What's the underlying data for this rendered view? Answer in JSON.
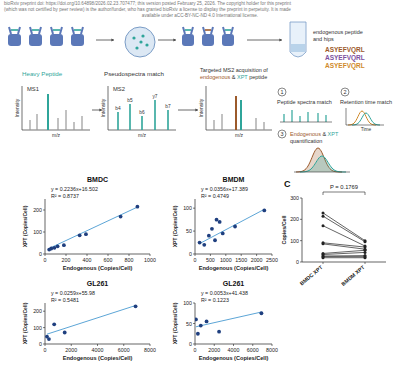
{
  "header": {
    "lines": [
      "bioRxiv preprint doi: https://doi.org/10.64898/2026.02.23.707477; this version posted February 25, 2026. The copyright holder for this preprint",
      "(which was not certified by peer review) is the author/funder, who has granted bioRxiv a license to display the preprint in perpetuity. It is made",
      "available under aCC-BY-NC-ND 4.0 International license."
    ]
  },
  "diagram": {
    "top_right": [
      "endogenous peptide",
      "and hips"
    ],
    "sequences": [
      "ASYEFVQRL",
      "ASYEFVQRL",
      "ASYEFVQRL"
    ],
    "heavy_peptide": "Heavy Peptide",
    "pseudospectra": "Pseudospectra match",
    "targeted": [
      "Targeted MS2 acquisition of",
      "endogenous",
      "&",
      "XPT",
      "peptide"
    ],
    "ms1": "MS1",
    "ms2": "MS2",
    "intensity": "Intensity",
    "mz": "m/z",
    "ions": [
      "b4",
      "b5",
      "b6",
      "y7",
      "b7"
    ],
    "steps": [
      {
        "number": "1",
        "label": [
          "Peptide spectra match"
        ]
      },
      {
        "number": "2",
        "label": [
          "Retention time match"
        ]
      },
      {
        "number": "3",
        "label": [
          "Endogenous",
          "&",
          "XPT",
          "quantification"
        ]
      }
    ],
    "time": "Time"
  },
  "chart_data": [
    {
      "type": "scatter",
      "title": "BMDC",
      "annotations": [
        "y = 0.2236x+16.502",
        "R² = 0.8737"
      ],
      "x_label": "Endogenous (Copies/Cell)",
      "y_label": "XPT (Copies/Cell)",
      "x": [
        40,
        60,
        90,
        120,
        180,
        330,
        390,
        720,
        880
      ],
      "values": [
        20,
        25,
        28,
        35,
        40,
        85,
        90,
        170,
        215
      ],
      "trendline": {
        "slope": 0.2236,
        "intercept": 16.502
      },
      "xlim": [
        0,
        1000
      ],
      "xticks": [
        0,
        200,
        400,
        600,
        800,
        1000
      ],
      "ylim": [
        0,
        250
      ],
      "yticks": [
        0,
        100,
        200
      ],
      "color": "#1f3f7f",
      "marker": "circle",
      "grid": false
    },
    {
      "type": "scatter",
      "title": "BMDM",
      "annotations": [
        "y = 0.0356x+17.389",
        "R² = 0.4749"
      ],
      "x_label": "Endogenous (Copies/Cell)",
      "y_label": "XPT (Copies/Cell)",
      "x": [
        150,
        300,
        450,
        550,
        650,
        700,
        800,
        900,
        1300,
        2250
      ],
      "values": [
        25,
        20,
        40,
        55,
        30,
        75,
        70,
        45,
        60,
        95
      ],
      "trendline": {
        "slope": 0.0356,
        "intercept": 17.389
      },
      "xlim": [
        0,
        2500
      ],
      "xticks": [
        0,
        500,
        1000,
        1500,
        2000,
        2500
      ],
      "ylim": [
        0,
        120
      ],
      "yticks": [
        0,
        50,
        100
      ],
      "color": "#1f3f7f",
      "marker": "circle",
      "grid": false
    },
    {
      "type": "scatter",
      "title": "GL261",
      "annotations": [
        "y = 0.0259x+55.98",
        "R² = 0.5481"
      ],
      "x_label": "Endogenous (Copies/Cell)",
      "y_label": "XPT (Copies/Cell)",
      "x": [
        150,
        300,
        700,
        1500,
        6900
      ],
      "values": [
        45,
        30,
        120,
        70,
        230
      ],
      "trendline": {
        "slope": 0.0259,
        "intercept": 55.98
      },
      "xlim": [
        0,
        8000
      ],
      "xticks": [
        0,
        2000,
        4000,
        6000,
        8000
      ],
      "ylim": [
        0,
        250
      ],
      "yticks": [
        0,
        100,
        200
      ],
      "color": "#1f3f7f",
      "marker": "circle",
      "grid": false
    },
    {
      "type": "scatter",
      "title": "GL261",
      "annotations": [
        "y = 0.0053x+41.438",
        "R² = 0.1223"
      ],
      "x_label": "Endogenous (Copies/Cell)",
      "y_label": "XPT (Copies/Cell)",
      "x": [
        100,
        300,
        600,
        1200,
        2500,
        6900
      ],
      "values": [
        60,
        25,
        45,
        55,
        30,
        75
      ],
      "trendline": {
        "slope": 0.0053,
        "intercept": 41.438
      },
      "xlim": [
        0,
        8000
      ],
      "xticks": [
        0,
        2000,
        4000,
        6000,
        8000
      ],
      "ylim": [
        0,
        100
      ],
      "yticks": [
        0,
        50,
        100
      ],
      "color": "#1f3f7f",
      "marker": "circle",
      "grid": false
    },
    {
      "type": "paired",
      "panel_label": "C",
      "annotations": [
        "P = 0.1769"
      ],
      "y_label": "Copies/Cell",
      "categories": [
        "BMDC XPT",
        "BMDM XPT"
      ],
      "series": [
        {
          "values": [
            230,
            100
          ]
        },
        {
          "values": [
            215,
            95
          ]
        },
        {
          "values": [
            170,
            75
          ]
        },
        {
          "values": [
            90,
            70
          ]
        },
        {
          "values": [
            85,
            60
          ]
        },
        {
          "values": [
            40,
            55
          ]
        },
        {
          "values": [
            35,
            45
          ]
        },
        {
          "values": [
            28,
            30
          ]
        },
        {
          "values": [
            25,
            25
          ]
        },
        {
          "values": [
            20,
            20
          ]
        }
      ],
      "ylim": [
        0,
        300
      ],
      "yticks": [
        0,
        100,
        200,
        300
      ],
      "color": "#222222",
      "marker": "circle",
      "grid": false
    }
  ]
}
